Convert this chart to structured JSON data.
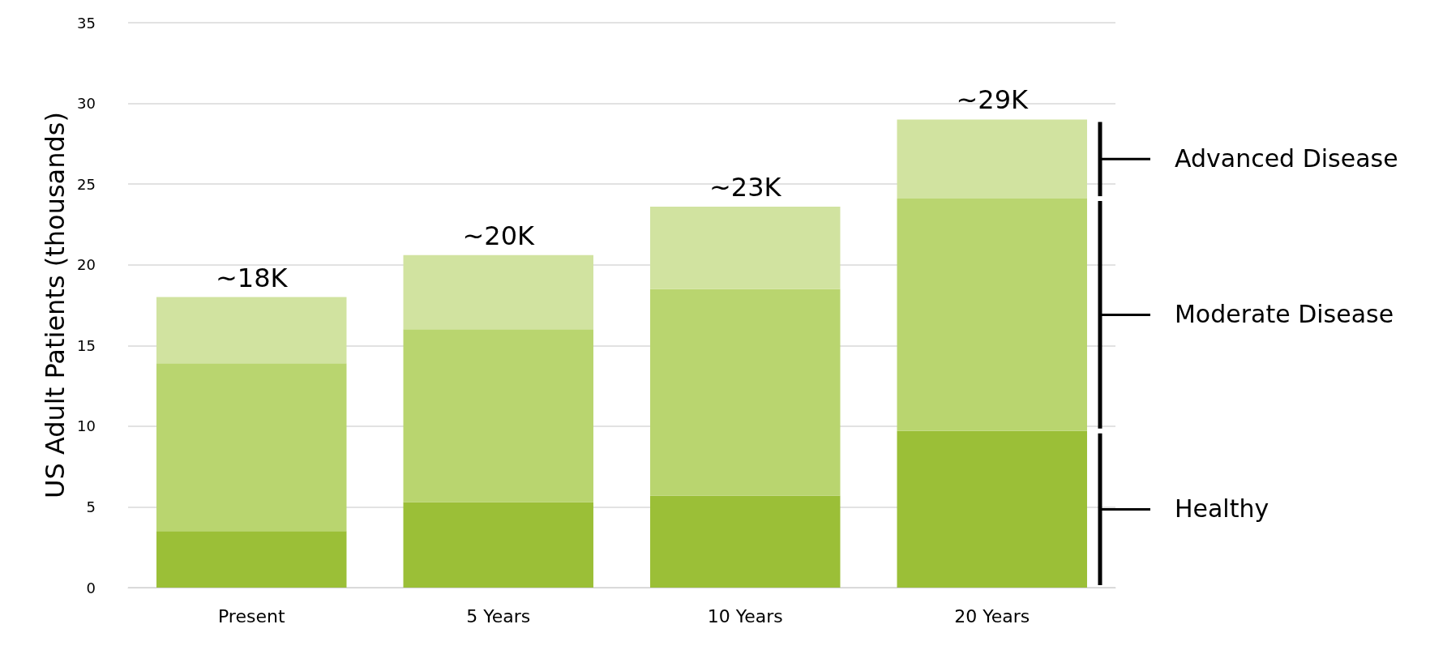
{
  "chart_data": {
    "type": "bar",
    "stacked": true,
    "ylabel": "US Adult Patients (thousands)",
    "categories": [
      "Present",
      "5 Years",
      "10 Years",
      "20 Years"
    ],
    "series": [
      {
        "name": "Healthy",
        "color": "#9bbf37",
        "values": [
          3.5,
          5.3,
          5.7,
          9.7
        ]
      },
      {
        "name": "Moderate Disease",
        "color": "#b9d56f",
        "values": [
          10.4,
          10.7,
          12.8,
          14.4
        ]
      },
      {
        "name": "Advanced Disease",
        "color": "#d1e3a0",
        "values": [
          4.1,
          4.6,
          5.1,
          4.9
        ]
      }
    ],
    "totals": [
      "~18K",
      "~20K",
      "~23K",
      "~29K"
    ],
    "ylim": [
      0,
      35
    ],
    "yticks": [
      0,
      5,
      10,
      15,
      20,
      25,
      30,
      35
    ],
    "grid": "y",
    "legend": false
  }
}
